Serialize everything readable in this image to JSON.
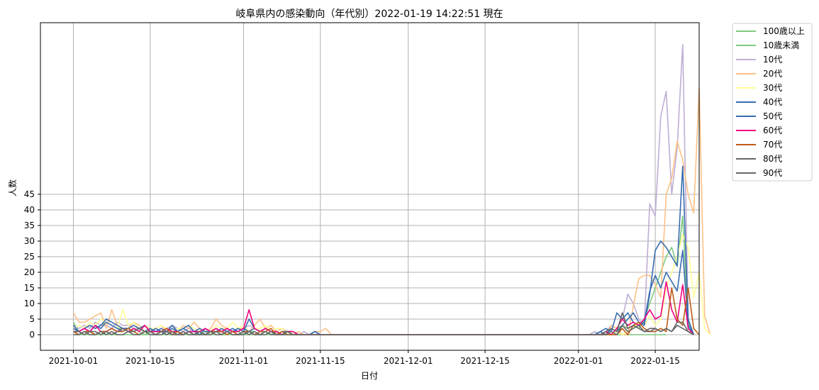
{
  "chart_data": {
    "type": "line",
    "title": "岐阜県内の感染動向（年代別）2022-01-19 14:22:51 現在",
    "xlabel": "日付",
    "ylabel": "人数",
    "start_date": "2021-10-01",
    "xlim": [
      "2021-09-25",
      "2022-01-23"
    ],
    "ylim": [
      -5,
      100
    ],
    "grid": true,
    "legend_position": "outside-top-right",
    "x_ticks": [
      "2021-10-01",
      "2021-10-15",
      "2021-11-01",
      "2021-11-15",
      "2021-12-01",
      "2021-12-15",
      "2022-01-01",
      "2022-01-15"
    ],
    "y_ticks": [
      0,
      5,
      10,
      15,
      20,
      25,
      30,
      35,
      40,
      45
    ],
    "series": [
      {
        "name": "100歳以上",
        "color": "#7fc97f",
        "values": [
          0,
          0,
          0,
          0,
          0,
          0,
          0,
          0,
          0,
          0,
          0,
          0,
          0,
          0,
          0,
          0,
          0,
          0,
          0,
          0,
          0,
          0,
          0,
          0,
          0,
          0,
          0,
          0,
          0,
          0,
          0,
          0,
          0,
          0,
          0,
          0,
          0,
          0,
          0,
          0,
          0,
          0,
          0,
          0,
          0,
          0,
          0,
          0,
          0,
          0,
          0,
          0,
          0,
          0,
          0,
          0,
          0,
          0,
          0,
          0,
          0,
          0,
          0,
          0,
          0,
          0,
          0,
          0,
          0,
          0,
          0,
          0,
          0,
          0,
          0,
          0,
          0,
          0,
          0,
          0,
          0,
          0,
          0,
          0,
          0,
          0,
          0,
          0,
          0,
          0,
          0,
          0,
          0,
          0,
          0,
          0,
          0,
          0,
          0,
          0,
          0,
          0,
          0,
          0,
          0,
          0,
          0,
          0,
          0
        ]
      },
      {
        "name": "10歳未満",
        "color": "#7fc97f",
        "values": [
          4,
          1,
          2,
          3,
          2,
          3,
          4,
          3,
          2,
          2,
          1,
          2,
          1,
          0,
          1,
          0,
          1,
          0,
          1,
          1,
          0,
          1,
          0,
          0,
          1,
          0,
          1,
          1,
          0,
          1,
          1,
          0,
          1,
          1,
          0,
          1,
          0,
          1,
          0,
          0,
          1,
          0,
          0,
          0,
          0,
          0,
          0,
          0,
          0,
          0,
          0,
          0,
          0,
          0,
          0,
          0,
          0,
          0,
          0,
          0,
          0,
          0,
          0,
          0,
          0,
          0,
          0,
          0,
          0,
          0,
          0,
          0,
          0,
          0,
          0,
          0,
          0,
          0,
          0,
          0,
          0,
          0,
          0,
          0,
          0,
          0,
          0,
          0,
          0,
          0,
          0,
          0,
          0,
          0,
          0,
          1,
          0,
          1,
          0,
          2,
          3,
          2,
          3,
          2,
          5,
          10,
          15,
          20,
          25,
          28,
          22,
          38,
          4,
          0
        ]
      },
      {
        "name": "10代",
        "color": "#beaed4",
        "values": [
          3,
          2,
          3,
          2,
          4,
          3,
          3,
          2,
          4,
          3,
          3,
          2,
          2,
          1,
          2,
          1,
          1,
          2,
          3,
          2,
          1,
          2,
          1,
          1,
          0,
          1,
          2,
          1,
          1,
          1,
          1,
          2,
          3,
          2,
          1,
          2,
          1,
          1,
          0,
          1,
          1,
          0,
          1,
          0,
          1,
          0,
          0,
          0,
          0,
          0,
          0,
          0,
          0,
          0,
          0,
          0,
          0,
          0,
          0,
          0,
          0,
          0,
          0,
          0,
          0,
          0,
          0,
          0,
          0,
          0,
          0,
          0,
          0,
          0,
          0,
          0,
          0,
          0,
          0,
          0,
          0,
          0,
          0,
          0,
          0,
          0,
          0,
          0,
          0,
          0,
          0,
          0,
          0,
          0,
          0,
          1,
          0,
          1,
          3,
          2,
          5,
          13,
          10,
          5,
          3,
          42,
          38,
          70,
          78,
          45,
          60,
          93,
          5,
          0
        ]
      },
      {
        "name": "20代",
        "color": "#fdc086",
        "values": [
          7,
          4,
          4,
          5,
          6,
          7,
          2,
          8,
          3,
          2,
          2,
          4,
          3,
          1,
          2,
          2,
          3,
          1,
          2,
          1,
          3,
          2,
          4,
          2,
          1,
          2,
          5,
          3,
          2,
          4,
          2,
          2,
          1,
          3,
          5,
          2,
          3,
          1,
          2,
          1,
          0,
          1,
          0,
          0,
          1,
          1,
          2,
          0,
          0,
          0,
          0,
          0,
          0,
          0,
          0,
          0,
          0,
          0,
          0,
          0,
          0,
          0,
          0,
          0,
          0,
          0,
          0,
          0,
          0,
          0,
          0,
          0,
          0,
          0,
          0,
          0,
          0,
          0,
          0,
          0,
          0,
          0,
          0,
          0,
          0,
          0,
          0,
          0,
          0,
          0,
          0,
          0,
          0,
          0,
          0,
          0,
          0,
          0,
          3,
          2,
          0,
          0,
          9,
          18,
          19,
          19,
          16,
          12,
          45,
          50,
          62,
          56,
          45,
          39,
          79,
          6,
          0
        ]
      },
      {
        "name": "30代",
        "color": "#ffff99",
        "values": [
          2,
          3,
          2,
          4,
          3,
          5,
          4,
          3,
          2,
          8,
          3,
          4,
          2,
          3,
          2,
          2,
          3,
          2,
          1,
          2,
          2,
          3,
          2,
          1,
          2,
          1,
          3,
          2,
          2,
          4,
          2,
          3,
          1,
          2,
          2,
          3,
          1,
          2,
          2,
          0,
          1,
          0,
          0,
          0,
          0,
          0,
          0,
          0,
          0,
          0,
          0,
          0,
          0,
          0,
          0,
          0,
          0,
          0,
          0,
          0,
          0,
          0,
          0,
          0,
          0,
          0,
          0,
          0,
          0,
          0,
          0,
          0,
          0,
          0,
          0,
          0,
          0,
          0,
          0,
          0,
          0,
          0,
          0,
          0,
          0,
          0,
          0,
          0,
          0,
          0,
          0,
          0,
          0,
          0,
          0,
          0,
          0,
          0,
          0,
          1,
          0,
          1,
          2,
          4,
          3,
          6,
          3,
          5,
          15,
          20,
          25,
          32,
          28,
          12,
          20,
          2,
          0
        ]
      },
      {
        "name": "40代",
        "color": "#386cb0",
        "values": [
          2,
          1,
          2,
          1,
          3,
          2,
          4,
          3,
          2,
          1,
          2,
          3,
          2,
          1,
          2,
          1,
          2,
          1,
          3,
          1,
          2,
          1,
          1,
          0,
          2,
          1,
          1,
          2,
          1,
          2,
          1,
          2,
          1,
          2,
          1,
          2,
          1,
          1,
          0,
          1,
          1,
          0,
          0,
          0,
          1,
          0,
          0,
          0,
          0,
          0,
          0,
          0,
          0,
          0,
          0,
          0,
          0,
          0,
          0,
          0,
          0,
          0,
          0,
          0,
          0,
          0,
          0,
          0,
          0,
          0,
          0,
          0,
          0,
          0,
          0,
          0,
          0,
          0,
          0,
          0,
          0,
          0,
          0,
          0,
          0,
          0,
          0,
          0,
          0,
          0,
          0,
          0,
          0,
          0,
          0,
          0,
          1,
          0,
          2,
          1,
          3,
          5,
          7,
          4,
          3,
          13,
          27,
          30,
          28,
          25,
          22,
          54,
          5,
          0
        ]
      },
      {
        "name": "50代",
        "color": "#386cb0",
        "values": [
          3,
          1,
          2,
          3,
          2,
          3,
          5,
          4,
          3,
          2,
          2,
          1,
          2,
          3,
          1,
          2,
          1,
          1,
          2,
          1,
          2,
          3,
          1,
          2,
          1,
          1,
          2,
          1,
          2,
          1,
          2,
          1,
          5,
          2,
          1,
          2,
          1,
          0,
          1,
          1,
          0,
          0,
          0,
          0,
          1,
          0,
          0,
          0,
          0,
          0,
          0,
          0,
          0,
          0,
          0,
          0,
          0,
          0,
          0,
          0,
          0,
          0,
          0,
          0,
          0,
          0,
          0,
          0,
          0,
          0,
          0,
          0,
          0,
          0,
          0,
          0,
          0,
          0,
          0,
          0,
          0,
          0,
          0,
          0,
          0,
          0,
          0,
          0,
          0,
          0,
          0,
          0,
          0,
          0,
          0,
          0,
          1,
          2,
          1,
          7,
          5,
          7,
          4,
          3,
          4,
          14,
          19,
          15,
          20,
          17,
          14,
          27,
          3,
          0
        ]
      },
      {
        "name": "60代",
        "color": "#f0027f",
        "values": [
          1,
          1,
          2,
          1,
          3,
          1,
          1,
          2,
          1,
          2,
          1,
          2,
          1,
          3,
          1,
          1,
          1,
          2,
          1,
          1,
          0,
          1,
          1,
          1,
          2,
          1,
          2,
          1,
          2,
          1,
          1,
          2,
          8,
          2,
          1,
          2,
          1,
          1,
          0,
          1,
          1,
          0,
          0,
          0,
          0,
          0,
          0,
          0,
          0,
          0,
          0,
          0,
          0,
          0,
          0,
          0,
          0,
          0,
          0,
          0,
          0,
          0,
          0,
          0,
          0,
          0,
          0,
          0,
          0,
          0,
          0,
          0,
          0,
          0,
          0,
          0,
          0,
          0,
          0,
          0,
          0,
          0,
          0,
          0,
          0,
          0,
          0,
          0,
          0,
          0,
          0,
          0,
          0,
          0,
          0,
          0,
          0,
          1,
          0,
          2,
          5,
          3,
          4,
          3,
          5,
          8,
          5,
          6,
          17,
          8,
          4,
          16,
          2,
          0
        ]
      },
      {
        "name": "70代",
        "color": "#bf5b17",
        "values": [
          1,
          0,
          1,
          1,
          0,
          1,
          1,
          2,
          1,
          1,
          2,
          1,
          0,
          1,
          1,
          0,
          1,
          2,
          0,
          1,
          0,
          1,
          0,
          1,
          0,
          1,
          1,
          1,
          0,
          1,
          0,
          1,
          1,
          0,
          1,
          1,
          2,
          0,
          1,
          0,
          0,
          0,
          0,
          0,
          0,
          0,
          0,
          0,
          0,
          0,
          0,
          0,
          0,
          0,
          0,
          0,
          0,
          0,
          0,
          0,
          0,
          0,
          0,
          0,
          0,
          0,
          0,
          0,
          0,
          0,
          0,
          0,
          0,
          0,
          0,
          0,
          0,
          0,
          0,
          0,
          0,
          0,
          0,
          0,
          0,
          0,
          0,
          0,
          0,
          0,
          0,
          0,
          0,
          0,
          0,
          0,
          0,
          0,
          0,
          0,
          2,
          0,
          3,
          4,
          2,
          1,
          1,
          2,
          1,
          15,
          5,
          3,
          15,
          2,
          0
        ]
      },
      {
        "name": "80代",
        "color": "#666666",
        "values": [
          1,
          1,
          0,
          1,
          1,
          0,
          1,
          0,
          1,
          2,
          1,
          1,
          2,
          1,
          1,
          0,
          1,
          0,
          1,
          0,
          0,
          1,
          0,
          1,
          0,
          0,
          1,
          0,
          1,
          0,
          0,
          1,
          0,
          1,
          0,
          0,
          1,
          0,
          0,
          1,
          0,
          0,
          0,
          0,
          0,
          0,
          0,
          0,
          0,
          0,
          0,
          0,
          0,
          0,
          0,
          0,
          0,
          0,
          0,
          0,
          0,
          0,
          0,
          0,
          0,
          0,
          0,
          0,
          0,
          0,
          0,
          0,
          0,
          0,
          0,
          0,
          0,
          0,
          0,
          0,
          0,
          0,
          0,
          0,
          0,
          0,
          0,
          0,
          0,
          0,
          0,
          0,
          0,
          0,
          0,
          0,
          0,
          1,
          2,
          1,
          7,
          2,
          3,
          2,
          1,
          2,
          2,
          1,
          2,
          1,
          4,
          4,
          1,
          0
        ]
      },
      {
        "name": "90代",
        "color": "#666666",
        "values": [
          0,
          0,
          1,
          0,
          0,
          1,
          0,
          1,
          0,
          0,
          1,
          0,
          0,
          1,
          0,
          0,
          0,
          1,
          0,
          0,
          1,
          0,
          0,
          0,
          0,
          1,
          0,
          0,
          1,
          0,
          0,
          0,
          1,
          0,
          0,
          1,
          0,
          0,
          0,
          0,
          0,
          0,
          0,
          0,
          0,
          0,
          0,
          0,
          0,
          0,
          0,
          0,
          0,
          0,
          0,
          0,
          0,
          0,
          0,
          0,
          0,
          0,
          0,
          0,
          0,
          0,
          0,
          0,
          0,
          0,
          0,
          0,
          0,
          0,
          0,
          0,
          0,
          0,
          0,
          0,
          0,
          0,
          0,
          0,
          0,
          0,
          0,
          0,
          0,
          0,
          0,
          0,
          0,
          0,
          0,
          0,
          0,
          0,
          1,
          0,
          3,
          1,
          2,
          3,
          1,
          1,
          2,
          1,
          2,
          1,
          3,
          2,
          1,
          0
        ]
      }
    ]
  }
}
